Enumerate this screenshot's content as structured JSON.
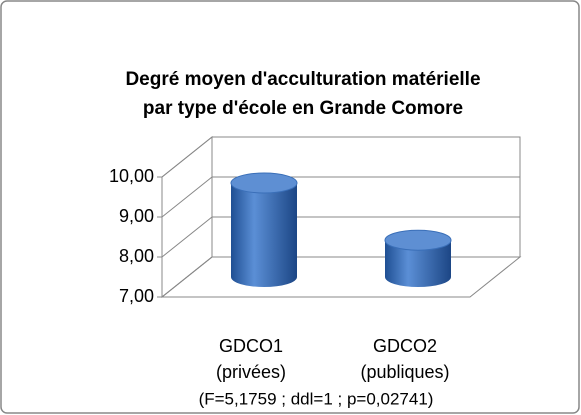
{
  "chart_data": {
    "type": "bar3d",
    "title": [
      "Degré moyen d'acculturation matérielle",
      "par type d'école en Grande Comore"
    ],
    "categories": [
      [
        "GDCO1",
        "(privées)"
      ],
      [
        "GDCO2",
        "(publiques)"
      ]
    ],
    "values": [
      9.35,
      7.92
    ],
    "color": "#3a6fb8",
    "ylim": [
      7,
      10
    ],
    "yticks": [
      {
        "value": 7,
        "label": "7,00"
      },
      {
        "value": 8,
        "label": "8,00"
      },
      {
        "value": 9,
        "label": "9,00"
      },
      {
        "value": 10,
        "label": "10,00"
      }
    ],
    "grid": true,
    "annotation": "(F=5,1759 ; ddl=1 ; p=0,02741)"
  }
}
